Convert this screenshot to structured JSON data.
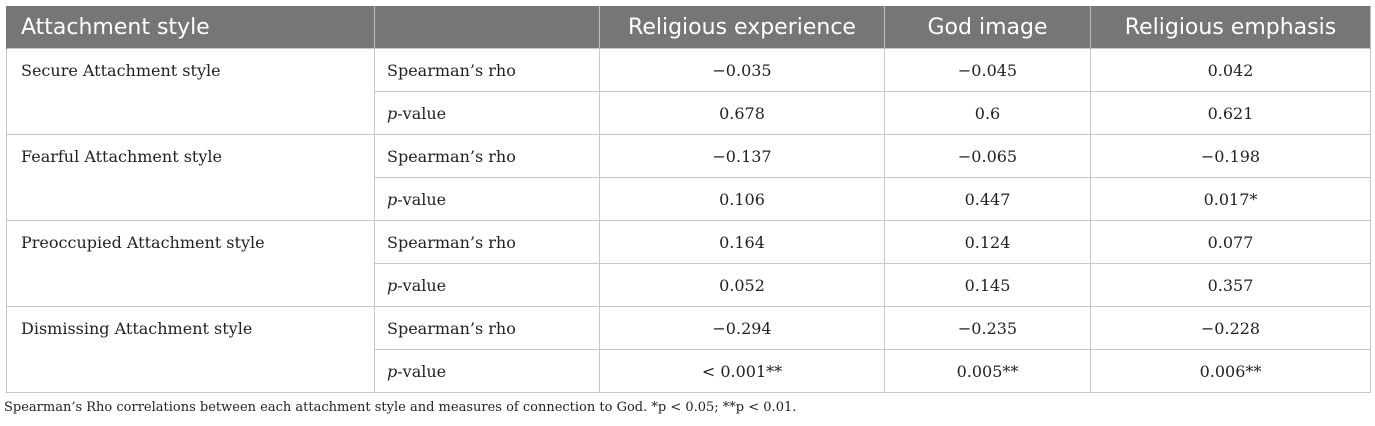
{
  "table": {
    "headers": [
      "Attachment style",
      "",
      "Religious experience",
      "God image",
      "Religious emphasis"
    ],
    "groups": [
      {
        "style": "Secure Attachment style",
        "rho": [
          "−0.035",
          "−0.045",
          "0.042"
        ],
        "p": [
          "0.678",
          "0.6",
          "0.621"
        ]
      },
      {
        "style": "Fearful Attachment style",
        "rho": [
          "−0.137",
          "−0.065",
          "−0.198"
        ],
        "p": [
          "0.106",
          "0.447",
          "0.017*"
        ]
      },
      {
        "style": "Preoccupied Attachment style",
        "rho": [
          "0.164",
          "0.124",
          "0.077"
        ],
        "p": [
          "0.052",
          "0.145",
          "0.357"
        ]
      },
      {
        "style": "Dismissing Attachment style",
        "rho": [
          "−0.294",
          "−0.235",
          "−0.228"
        ],
        "p": [
          "< 0.001**",
          "0.005**",
          "0.006**"
        ]
      }
    ],
    "stat_labels": {
      "rho": "Spearman’s rho",
      "p_italic": "p",
      "p_rest": "-value"
    }
  },
  "footnote": "Spearman’s Rho correlations between each attachment style and measures of connection to God. *p < 0.05; **p < 0.01."
}
